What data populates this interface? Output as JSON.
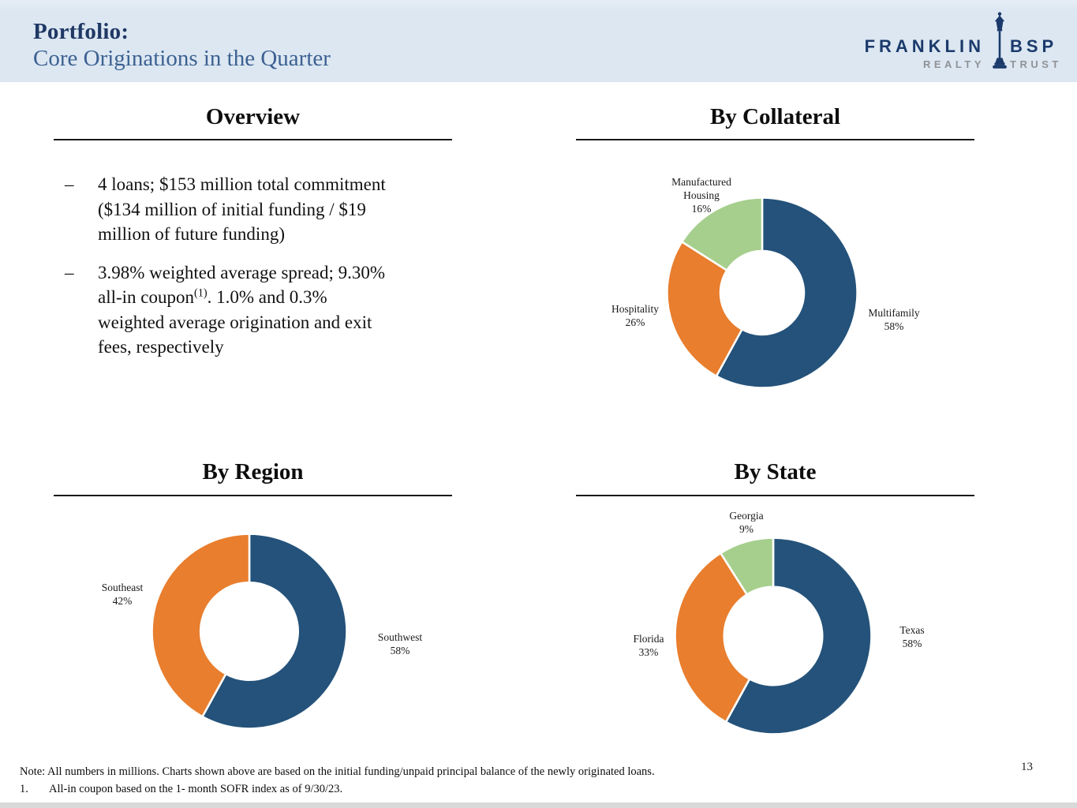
{
  "header": {
    "title_line1": "Portfolio:",
    "title_line2": "Core Originations in the Quarter"
  },
  "logo": {
    "name_left": "FRANKLIN",
    "name_right": "BSP",
    "sub_left": "REALTY",
    "sub_right": "TRUST"
  },
  "overview": {
    "title": "Overview",
    "bullet_marker": "–",
    "bullets": [
      {
        "text": "4 loans; $153 million total commitment\n($134 million of initial funding / $19\nmillion of future funding)"
      },
      {
        "pre": "3.98% weighted average spread; 9.30%\nall-in coupon",
        "sup": "(1)",
        "post": ". 1.0% and 0.3%\nweighted average origination and exit\nfees, respectively"
      }
    ]
  },
  "chart_data": [
    {
      "type": "pie",
      "title": "By Collateral",
      "labels": [
        "Multifamily",
        "Hospitality",
        "Manufactured Housing"
      ],
      "values": [
        58,
        26,
        16
      ],
      "unit": "%",
      "colors": [
        "#24527a",
        "#e87e2e",
        "#a6cf8d"
      ],
      "donut": true,
      "hole_ratio": 0.44,
      "start_angle_deg": 0,
      "direction": "clockwise",
      "legend_position": "none",
      "data_labels": "category name and percent placed outside slices"
    },
    {
      "type": "pie",
      "title": "By Region",
      "labels": [
        "Southwest",
        "Southeast"
      ],
      "values": [
        58,
        42
      ],
      "unit": "%",
      "colors": [
        "#24527a",
        "#e87e2e"
      ],
      "donut": true,
      "hole_ratio": 0.5,
      "start_angle_deg": 0,
      "direction": "clockwise",
      "legend_position": "none",
      "data_labels": "category name and percent placed outside slices"
    },
    {
      "type": "pie",
      "title": "By State",
      "labels": [
        "Texas",
        "Florida",
        "Georgia"
      ],
      "values": [
        58,
        33,
        9
      ],
      "unit": "%",
      "colors": [
        "#24527a",
        "#e87e2e",
        "#a6cf8d"
      ],
      "donut": true,
      "hole_ratio": 0.5,
      "start_angle_deg": 0,
      "direction": "clockwise",
      "legend_position": "none",
      "data_labels": "category name and percent placed outside slices"
    }
  ],
  "footer": {
    "note": "Note: All numbers in millions. Charts shown above are based on the initial funding/unpaid principal balance of the newly originated loans.",
    "footnote_number": "1.",
    "footnote": "All-in coupon based on the 1- month SOFR index as of 9/30/23.",
    "page_number": "13"
  },
  "colors": {
    "header_background": "#dce7f2",
    "title_navy": "#1f3864",
    "title_blue": "#3c6191",
    "logo_navy": "#1b3a6b",
    "logo_gray": "#8f9296",
    "chart_blue": "#24527a",
    "chart_orange": "#e87e2e",
    "chart_green": "#a6cf8d"
  }
}
